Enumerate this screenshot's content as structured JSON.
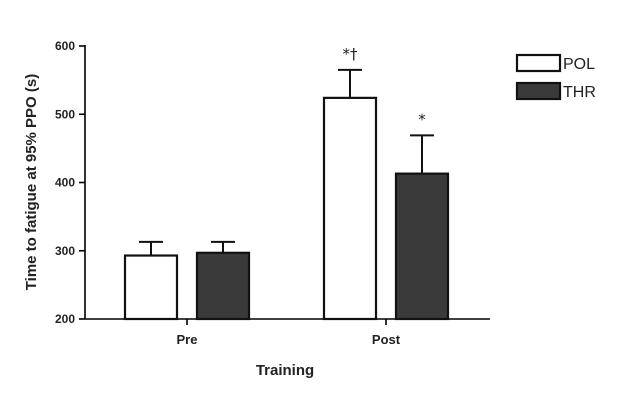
{
  "chart_data": {
    "type": "bar",
    "categories": [
      "Pre",
      "Post"
    ],
    "series": [
      {
        "name": "POL",
        "values": [
          293,
          524
        ],
        "errors": [
          20,
          41
        ],
        "color": "#ffffff",
        "edge": "#111111",
        "annotations": [
          "",
          "*†"
        ]
      },
      {
        "name": "THR",
        "values": [
          297,
          413
        ],
        "errors": [
          16,
          56
        ],
        "color": "#3a3a3a",
        "edge": "#111111",
        "annotations": [
          "",
          "*"
        ]
      }
    ],
    "xlabel": "Training",
    "ylabel": "Time to fatigue at 95% PPO (s)",
    "ylim": [
      200,
      600
    ],
    "yticks": [
      200,
      300,
      400,
      500,
      600
    ],
    "grid": false,
    "legend": "top-right"
  }
}
